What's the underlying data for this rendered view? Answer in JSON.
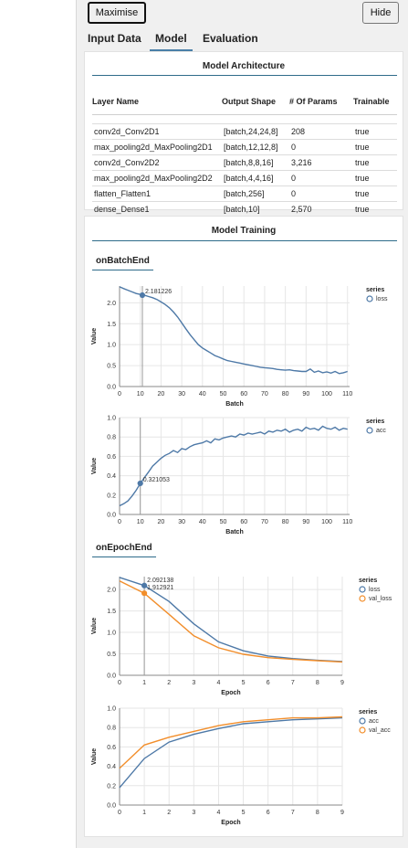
{
  "buttons": {
    "maximise": "Maximise",
    "hide": "Hide"
  },
  "tabs": [
    {
      "label": "Input Data",
      "active": false
    },
    {
      "label": "Model",
      "active": true
    },
    {
      "label": "Evaluation",
      "active": false
    }
  ],
  "architecture": {
    "title": "Model Architecture",
    "headers": [
      "Layer Name",
      "Output Shape",
      "# Of Params",
      "Trainable"
    ],
    "rows": [
      [
        "conv2d_Conv2D1",
        "[batch,24,24,8]",
        "208",
        "true"
      ],
      [
        "max_pooling2d_MaxPooling2D1",
        "[batch,12,12,8]",
        "0",
        "true"
      ],
      [
        "conv2d_Conv2D2",
        "[batch,8,8,16]",
        "3,216",
        "true"
      ],
      [
        "max_pooling2d_MaxPooling2D2",
        "[batch,4,4,16]",
        "0",
        "true"
      ],
      [
        "flatten_Flatten1",
        "[batch,256]",
        "0",
        "true"
      ],
      [
        "dense_Dense1",
        "[batch,10]",
        "2,570",
        "true"
      ]
    ]
  },
  "training": {
    "title": "Model Training",
    "batch_section": "onBatchEnd",
    "epoch_section": "onEpochEnd"
  },
  "chart_data": [
    {
      "type": "line",
      "xlabel": "Batch",
      "ylabel": "Value",
      "xlim": [
        0,
        111
      ],
      "ylim": [
        0,
        2.4
      ],
      "xticks": [
        0,
        10,
        20,
        30,
        40,
        50,
        60,
        70,
        80,
        90,
        100,
        110
      ],
      "yticks": [
        0.0,
        0.5,
        1.0,
        1.5,
        2.0
      ],
      "legend_title": "series",
      "series": [
        {
          "name": "loss",
          "color": "#4e79a7",
          "x": [
            0,
            2,
            4,
            6,
            8,
            10,
            12,
            14,
            16,
            18,
            20,
            22,
            24,
            26,
            28,
            30,
            32,
            34,
            36,
            38,
            40,
            42,
            44,
            46,
            48,
            50,
            52,
            54,
            56,
            58,
            60,
            62,
            64,
            66,
            68,
            70,
            72,
            74,
            76,
            78,
            80,
            82,
            84,
            86,
            88,
            90,
            92,
            94,
            96,
            98,
            100,
            102,
            104,
            106,
            108,
            110
          ],
          "y": [
            2.38,
            2.34,
            2.3,
            2.26,
            2.22,
            2.2,
            2.18,
            2.15,
            2.12,
            2.08,
            2.02,
            1.96,
            1.88,
            1.78,
            1.66,
            1.52,
            1.38,
            1.24,
            1.12,
            1.0,
            0.92,
            0.86,
            0.8,
            0.74,
            0.7,
            0.66,
            0.62,
            0.6,
            0.58,
            0.56,
            0.54,
            0.52,
            0.5,
            0.48,
            0.46,
            0.45,
            0.44,
            0.43,
            0.41,
            0.4,
            0.39,
            0.4,
            0.38,
            0.37,
            0.36,
            0.36,
            0.42,
            0.34,
            0.37,
            0.33,
            0.35,
            0.32,
            0.36,
            0.31,
            0.33,
            0.36
          ]
        }
      ],
      "annotation": {
        "x": 11,
        "y": 2.181226,
        "label": "2.181226"
      }
    },
    {
      "type": "line",
      "xlabel": "Batch",
      "ylabel": "Value",
      "xlim": [
        0,
        111
      ],
      "ylim": [
        0,
        1.0
      ],
      "xticks": [
        0,
        10,
        20,
        30,
        40,
        50,
        60,
        70,
        80,
        90,
        100,
        110
      ],
      "yticks": [
        0.0,
        0.2,
        0.4,
        0.6,
        0.8,
        1.0
      ],
      "legend_title": "series",
      "series": [
        {
          "name": "acc",
          "color": "#4e79a7",
          "x": [
            0,
            2,
            4,
            6,
            8,
            10,
            12,
            14,
            16,
            18,
            20,
            22,
            24,
            26,
            28,
            30,
            32,
            34,
            36,
            38,
            40,
            42,
            44,
            46,
            48,
            50,
            52,
            54,
            56,
            58,
            60,
            62,
            64,
            66,
            68,
            70,
            72,
            74,
            76,
            78,
            80,
            82,
            84,
            86,
            88,
            90,
            92,
            94,
            96,
            98,
            100,
            102,
            104,
            106,
            108,
            110
          ],
          "y": [
            0.09,
            0.11,
            0.14,
            0.19,
            0.25,
            0.32,
            0.38,
            0.44,
            0.5,
            0.54,
            0.58,
            0.61,
            0.63,
            0.66,
            0.64,
            0.68,
            0.67,
            0.7,
            0.72,
            0.73,
            0.74,
            0.76,
            0.74,
            0.78,
            0.77,
            0.79,
            0.8,
            0.81,
            0.8,
            0.83,
            0.82,
            0.84,
            0.83,
            0.84,
            0.85,
            0.83,
            0.86,
            0.85,
            0.87,
            0.86,
            0.88,
            0.85,
            0.87,
            0.88,
            0.86,
            0.9,
            0.88,
            0.89,
            0.87,
            0.91,
            0.89,
            0.88,
            0.9,
            0.87,
            0.89,
            0.88
          ]
        }
      ],
      "annotation": {
        "x": 10,
        "y": 0.321053,
        "label": "0.321053"
      }
    },
    {
      "type": "line",
      "xlabel": "Epoch",
      "ylabel": "Value",
      "xlim": [
        0,
        9
      ],
      "ylim": [
        0,
        2.3
      ],
      "xticks": [
        0,
        1,
        2,
        3,
        4,
        5,
        6,
        7,
        8,
        9
      ],
      "yticks": [
        0.0,
        0.5,
        1.0,
        1.5,
        2.0
      ],
      "legend_title": "series",
      "series": [
        {
          "name": "loss",
          "color": "#4e79a7",
          "x": [
            0,
            1,
            2,
            3,
            4,
            5,
            6,
            7,
            8,
            9
          ],
          "y": [
            2.28,
            2.092138,
            1.72,
            1.2,
            0.78,
            0.57,
            0.45,
            0.39,
            0.35,
            0.32
          ]
        },
        {
          "name": "val_loss",
          "color": "#f28e2b",
          "x": [
            0,
            1,
            2,
            3,
            4,
            5,
            6,
            7,
            8,
            9
          ],
          "y": [
            2.2,
            1.912921,
            1.42,
            0.92,
            0.64,
            0.49,
            0.41,
            0.37,
            0.34,
            0.31
          ]
        }
      ],
      "annotations": [
        {
          "x": 1,
          "y": 2.092138,
          "label": "2.092138"
        },
        {
          "x": 1,
          "y": 1.912921,
          "label": "1.912921"
        }
      ]
    },
    {
      "type": "line",
      "xlabel": "Epoch",
      "ylabel": "Value",
      "xlim": [
        0,
        9
      ],
      "ylim": [
        0,
        1.0
      ],
      "xticks": [
        0,
        1,
        2,
        3,
        4,
        5,
        6,
        7,
        8,
        9
      ],
      "yticks": [
        0.0,
        0.2,
        0.4,
        0.6,
        0.8,
        1.0
      ],
      "legend_title": "series",
      "series": [
        {
          "name": "acc",
          "color": "#4e79a7",
          "x": [
            0,
            1,
            2,
            3,
            4,
            5,
            6,
            7,
            8,
            9
          ],
          "y": [
            0.18,
            0.48,
            0.65,
            0.73,
            0.79,
            0.84,
            0.86,
            0.88,
            0.89,
            0.9
          ]
        },
        {
          "name": "val_acc",
          "color": "#f28e2b",
          "x": [
            0,
            1,
            2,
            3,
            4,
            5,
            6,
            7,
            8,
            9
          ],
          "y": [
            0.38,
            0.62,
            0.7,
            0.76,
            0.82,
            0.86,
            0.88,
            0.9,
            0.9,
            0.91
          ]
        }
      ]
    }
  ]
}
